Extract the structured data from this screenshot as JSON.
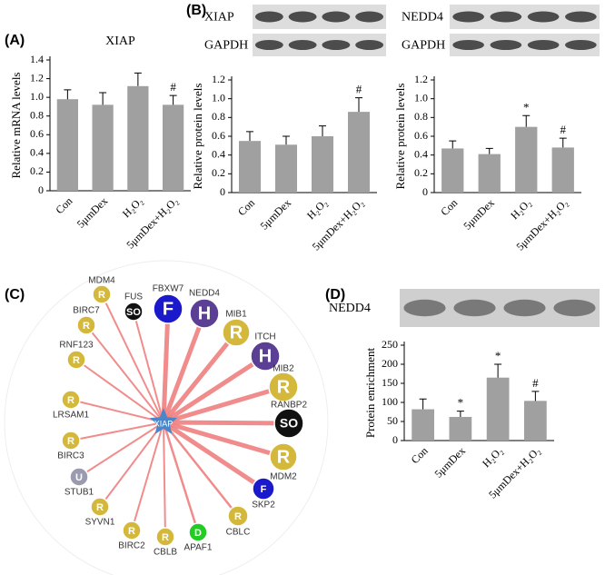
{
  "panels": [
    "(A)",
    "(B)",
    "(C)",
    "(D)"
  ],
  "blots": [
    {
      "rows": [
        "XIAP",
        "GAPDH"
      ]
    },
    {
      "rows": [
        "NEDD4",
        "GAPDH"
      ]
    },
    {
      "rows": [
        "NEDD4"
      ]
    }
  ],
  "chart_data": [
    {
      "type": "bar",
      "title": "XIAP",
      "ylabel": "Relative mRNA levels",
      "color": "#a0a0a0",
      "categories": [
        "Con",
        "5μmDex",
        "H₂O₂",
        "5μmDex+H₂O₂"
      ],
      "values": [
        0.98,
        0.92,
        1.12,
        0.92
      ],
      "errors": [
        0.1,
        0.13,
        0.14,
        0.1
      ],
      "markers": [
        null,
        null,
        null,
        "#"
      ],
      "ylim": [
        0,
        1.4
      ],
      "yticks": [
        0,
        0.2,
        0.4,
        0.6,
        0.8,
        {
          "value": 1,
          "label": "1.0"
        },
        1.2,
        1.4
      ]
    },
    {
      "type": "bar",
      "ylabel": "Relative protein levels",
      "color": "#a0a0a0",
      "categories": [
        "Con",
        "5μmDex",
        "H₂O₂",
        "5μmDex+H₂O₂"
      ],
      "values": [
        0.55,
        0.51,
        0.6,
        0.86
      ],
      "errors": [
        0.1,
        0.09,
        0.11,
        0.15
      ],
      "markers": [
        null,
        null,
        null,
        "#"
      ],
      "ylim": [
        0,
        1.2
      ],
      "yticks": [
        0,
        0.2,
        0.4,
        0.6,
        0.8,
        {
          "value": 1,
          "label": "1.0"
        },
        1.2
      ]
    },
    {
      "type": "bar",
      "ylabel": "Relative protein levels",
      "color": "#a0a0a0",
      "categories": [
        "Con",
        "5μmDex",
        "H₂O₂",
        "5μmDex+H₂O₂"
      ],
      "values": [
        0.47,
        0.41,
        0.7,
        0.48
      ],
      "errors": [
        0.08,
        0.06,
        0.12,
        0.1
      ],
      "markers": [
        null,
        null,
        "*",
        "#"
      ],
      "ylim": [
        0,
        1.2
      ],
      "yticks": [
        0,
        0.2,
        0.4,
        0.6,
        0.8,
        {
          "value": 1,
          "label": "1.0"
        },
        1.2
      ]
    },
    {
      "type": "bar",
      "ylabel": "Protein enrichment",
      "color": "#a0a0a0",
      "categories": [
        "Con",
        "5μmDex",
        "H₂O₂",
        "5μmDex+H₂O₂"
      ],
      "values": [
        82,
        62,
        165,
        104
      ],
      "errors": [
        27,
        15,
        35,
        25
      ],
      "markers": [
        null,
        "*",
        "*",
        "#"
      ],
      "ylim": [
        0,
        250
      ],
      "yticks": [
        0,
        50,
        100,
        150,
        200,
        250
      ]
    }
  ],
  "network": {
    "center": "XIAP",
    "nodes": [
      {
        "name": "FBXW7",
        "letter": "F",
        "color": "#1a1acc"
      },
      {
        "name": "FUS",
        "letter": "SO",
        "color": "#111111"
      },
      {
        "name": "NEDD4",
        "letter": "H",
        "color": "#5b3f94"
      },
      {
        "name": "MIB1",
        "letter": "R",
        "color": "#d4b83c"
      },
      {
        "name": "ITCH",
        "letter": "H",
        "color": "#5b3f94"
      },
      {
        "name": "MIB2",
        "letter": "R",
        "color": "#d4b83c"
      },
      {
        "name": "RANBP2",
        "letter": "SO",
        "color": "#111111"
      },
      {
        "name": "MDM2",
        "letter": "R",
        "color": "#d4b83c"
      },
      {
        "name": "SKP2",
        "letter": "F",
        "color": "#1a1acc"
      },
      {
        "name": "CBLC",
        "letter": "R",
        "color": "#d4b83c"
      },
      {
        "name": "APAF1",
        "letter": "D",
        "color": "#22cc22"
      },
      {
        "name": "CBLB",
        "letter": "R",
        "color": "#d4b83c"
      },
      {
        "name": "BIRC2",
        "letter": "R",
        "color": "#d4b83c"
      },
      {
        "name": "SYVN1",
        "letter": "R",
        "color": "#d4b83c"
      },
      {
        "name": "STUB1",
        "letter": "U",
        "color": "#9a9ab0"
      },
      {
        "name": "BIRC3",
        "letter": "R",
        "color": "#d4b83c"
      },
      {
        "name": "LRSAM1",
        "letter": "R",
        "color": "#d4b83c"
      },
      {
        "name": "RNF123",
        "letter": "R",
        "color": "#d4b83c"
      },
      {
        "name": "BIRC7",
        "letter": "R",
        "color": "#d4b83c"
      },
      {
        "name": "MDM4",
        "letter": "R",
        "color": "#d4b83c"
      }
    ]
  }
}
